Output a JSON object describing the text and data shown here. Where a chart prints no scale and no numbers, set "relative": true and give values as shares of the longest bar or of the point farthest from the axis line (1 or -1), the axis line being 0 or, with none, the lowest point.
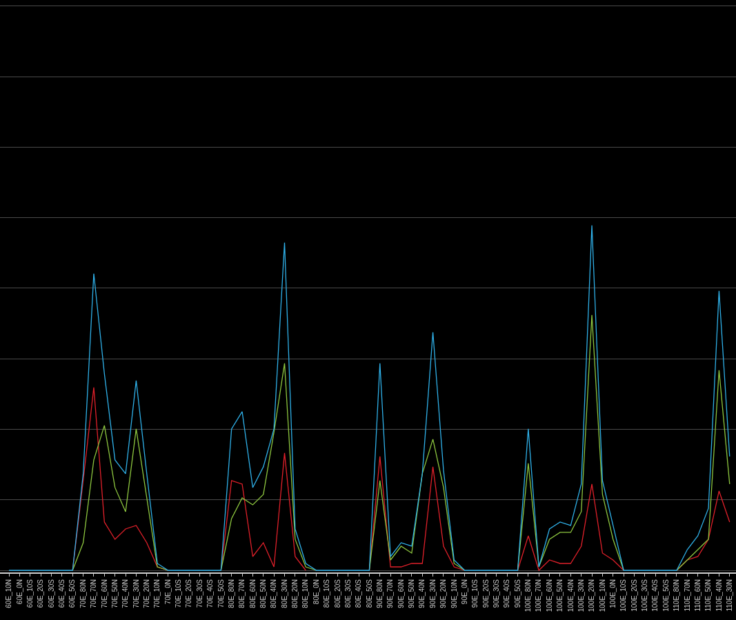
{
  "chart_data": {
    "type": "line",
    "relative": true,
    "grid": "y",
    "categories": [
      "60E_10N",
      "60E_0N",
      "60E_10S",
      "60E_20S",
      "60E_30S",
      "60E_40S",
      "60E_50S",
      "70E_80N",
      "70E_70N",
      "70E_60N",
      "70E_50N",
      "70E_40N",
      "70E_30N",
      "70E_20N",
      "70E_10N",
      "70E_0N",
      "70E_10S",
      "70E_20S",
      "70E_30S",
      "70E_40S",
      "70E_50S",
      "80E_80N",
      "80E_70N",
      "80E_60N",
      "80E_50N",
      "80E_40N",
      "80E_30N",
      "80E_20N",
      "80E_10N",
      "80E_0N",
      "80E_10S",
      "80E_20S",
      "80E_30S",
      "80E_40S",
      "80E_50S",
      "90E_80N",
      "90E_70N",
      "90E_60N",
      "90E_50N",
      "90E_40N",
      "90E_30N",
      "90E_20N",
      "90E_10N",
      "90E_0N",
      "90E_10S",
      "90E_20S",
      "90E_30S",
      "90E_40S",
      "90E_50S",
      "100E_80N",
      "100E_70N",
      "100E_60N",
      "100E_50N",
      "100E_40N",
      "100E_30N",
      "100E_20N",
      "100E_10N",
      "100E_0N",
      "100E_10S",
      "100E_20S",
      "100E_30S",
      "100E_40S",
      "100E_50S",
      "110E_80N",
      "110E_70N",
      "110E_60N",
      "110E_50N",
      "110E_40N",
      "110E_30N"
    ],
    "series": [
      {
        "color": "#2fb0e8",
        "values": [
          0,
          0,
          0,
          0,
          0,
          0,
          0,
          0.28,
          0.86,
          0.57,
          0.32,
          0.28,
          0.55,
          0.28,
          0.02,
          0,
          0,
          0,
          0,
          0,
          0,
          0.41,
          0.46,
          0.24,
          0.3,
          0.41,
          0.95,
          0.12,
          0.02,
          0,
          0,
          0,
          0,
          0,
          0,
          0.6,
          0.04,
          0.08,
          0.07,
          0.28,
          0.69,
          0.29,
          0.03,
          0,
          0,
          0,
          0,
          0,
          0,
          0.41,
          0.01,
          0.12,
          0.14,
          0.13,
          0.25,
          1,
          0.26,
          0.13,
          0,
          0,
          0,
          0,
          0,
          0,
          0.06,
          0.1,
          0.18,
          0.81,
          0.33
        ]
      },
      {
        "color": "#8dc63f",
        "values": [
          null,
          null,
          null,
          null,
          null,
          null,
          0,
          0.08,
          0.32,
          0.42,
          0.24,
          0.17,
          0.41,
          0.21,
          0.01,
          0,
          null,
          null,
          null,
          null,
          0,
          0.15,
          0.21,
          0.19,
          0.22,
          0.4,
          0.6,
          0.09,
          0.01,
          0,
          null,
          null,
          null,
          null,
          0,
          0.26,
          0.03,
          0.07,
          0.05,
          0.28,
          0.38,
          0.24,
          0.02,
          0,
          null,
          null,
          null,
          null,
          0,
          0.31,
          0.01,
          0.09,
          0.11,
          0.11,
          0.17,
          0.74,
          0.22,
          0.09,
          0,
          null,
          null,
          null,
          null,
          0,
          0.03,
          0.06,
          0.09,
          0.58,
          0.25
        ]
      },
      {
        "color": "#e0202a",
        "values": [
          null,
          null,
          null,
          null,
          null,
          null,
          0,
          0.26,
          0.53,
          0.14,
          0.09,
          0.12,
          0.13,
          0.08,
          0.01,
          0,
          null,
          null,
          null,
          null,
          0,
          0.26,
          0.25,
          0.04,
          0.08,
          0.01,
          0.34,
          0.04,
          0,
          null,
          null,
          null,
          null,
          null,
          0,
          0.33,
          0.01,
          0.01,
          0.02,
          0.02,
          0.3,
          0.07,
          0.01,
          0,
          null,
          null,
          null,
          null,
          0,
          0.1,
          0,
          0.03,
          0.02,
          0.02,
          0.07,
          0.25,
          0.05,
          0.03,
          0,
          null,
          null,
          null,
          null,
          0,
          0.03,
          0.04,
          0.09,
          0.23,
          0.14
        ]
      }
    ]
  }
}
